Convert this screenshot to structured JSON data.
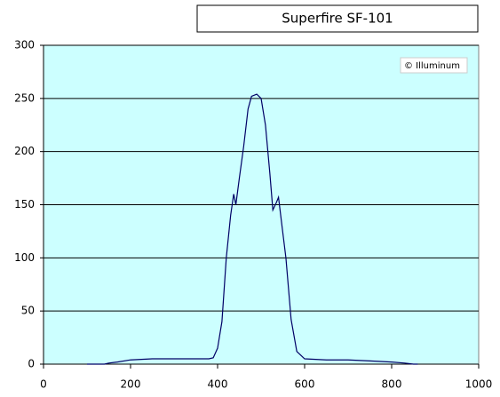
{
  "chart_data": {
    "type": "line",
    "title": "Superfire SF-101",
    "annotation": "© Illuminum",
    "x": [
      100,
      140,
      150,
      170,
      200,
      250,
      300,
      350,
      380,
      390,
      400,
      410,
      420,
      430,
      437,
      442,
      450,
      460,
      470,
      478,
      490,
      500,
      510,
      520,
      527,
      535,
      540,
      548,
      557,
      569,
      582,
      600,
      650,
      700,
      750,
      800,
      830,
      850,
      860
    ],
    "series": [
      {
        "color": "#000066",
        "values": [
          0,
          0,
          1,
          2,
          4,
          5,
          5,
          5,
          5,
          6,
          15,
          40,
          100,
          140,
          160,
          150,
          175,
          205,
          240,
          252,
          254,
          250,
          225,
          180,
          145,
          152,
          157,
          130,
          100,
          42,
          12,
          5,
          4,
          4,
          3,
          2,
          1,
          0,
          0
        ]
      }
    ],
    "xlim": [
      0,
      1000
    ],
    "xticks": [
      0,
      200,
      400,
      600,
      800,
      1000
    ],
    "ylim": [
      0,
      300
    ],
    "yticks": [
      0,
      50,
      100,
      150,
      200,
      250,
      300
    ],
    "grid": true,
    "background": "#ccffff"
  }
}
